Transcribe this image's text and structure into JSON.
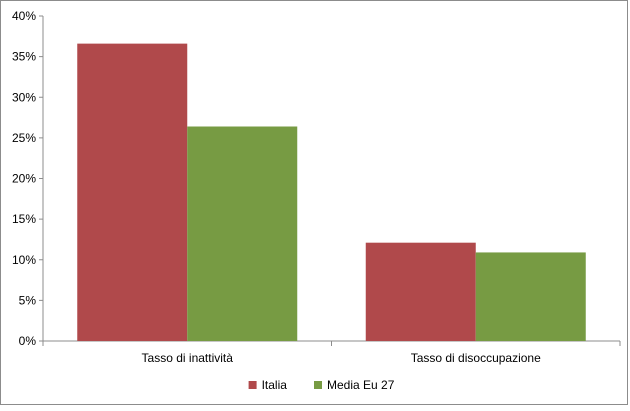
{
  "chart_data": {
    "type": "bar",
    "categories": [
      "Tasso di inattività",
      "Tasso di disoccupazione"
    ],
    "series": [
      {
        "name": "Italia",
        "values": [
          36.6,
          12.1
        ],
        "color": "#B0494B"
      },
      {
        "name": "Media Eu 27",
        "values": [
          26.4,
          10.9
        ],
        "color": "#779B43"
      }
    ],
    "ylim": [
      0,
      40
    ],
    "ytick_values": [
      0,
      5,
      10,
      15,
      20,
      25,
      30,
      35,
      40
    ],
    "ytick_labels": [
      "0%",
      "5%",
      "10%",
      "15%",
      "20%",
      "25%",
      "30%",
      "35%",
      "40%"
    ],
    "grid": false,
    "legend_position": "bottom"
  }
}
